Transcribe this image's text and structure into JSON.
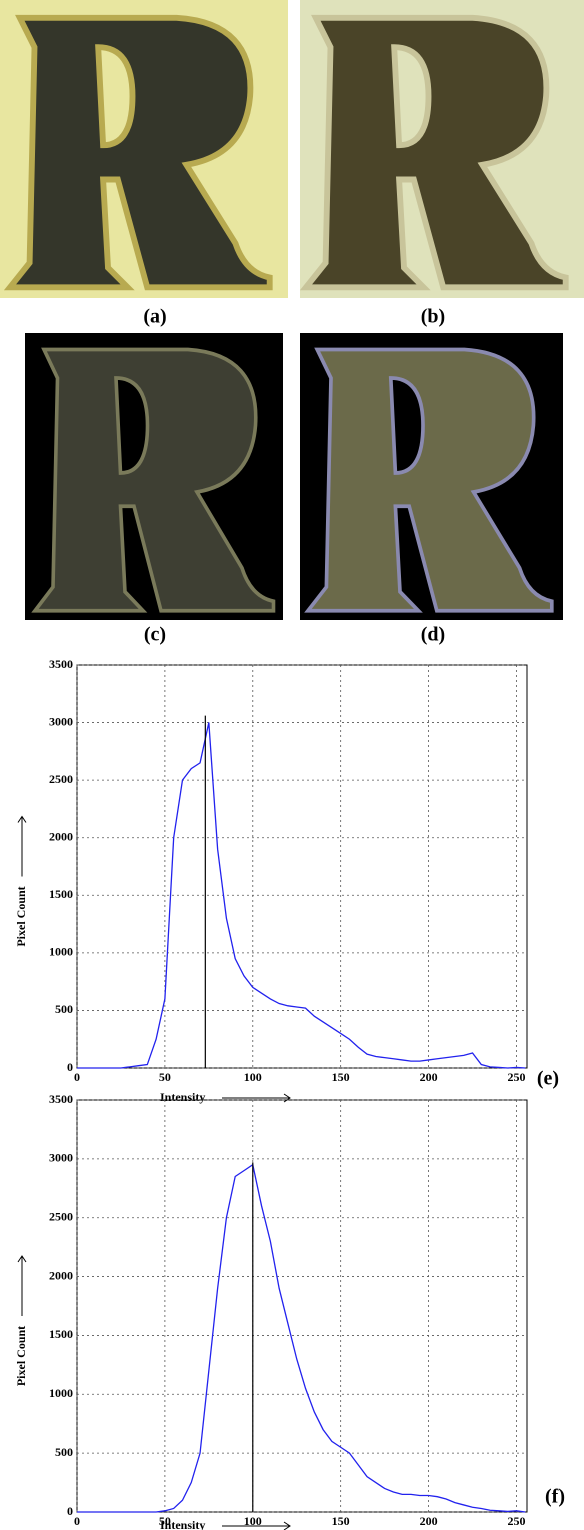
{
  "panels": [
    {
      "label": "(a)"
    },
    {
      "label": "(b)"
    },
    {
      "label": "(c)"
    },
    {
      "label": "(d)"
    }
  ],
  "chart_data": [
    {
      "type": "line",
      "panel_label": "(e)",
      "xlabel": "Intensity",
      "ylabel": "Pixel Count",
      "color": "#2222ee",
      "x": [
        0,
        5,
        10,
        15,
        20,
        25,
        30,
        35,
        40,
        45,
        50,
        55,
        60,
        65,
        70,
        75,
        80,
        85,
        90,
        95,
        100,
        105,
        110,
        115,
        120,
        125,
        130,
        135,
        140,
        145,
        150,
        155,
        160,
        165,
        170,
        175,
        180,
        185,
        190,
        195,
        200,
        205,
        210,
        215,
        220,
        225,
        230,
        235,
        240,
        245,
        250,
        255
      ],
      "values": [
        0,
        0,
        0,
        0,
        0,
        0,
        10,
        20,
        30,
        250,
        600,
        2000,
        2500,
        2600,
        2650,
        3000,
        1900,
        1300,
        950,
        800,
        700,
        650,
        600,
        560,
        540,
        530,
        520,
        450,
        400,
        350,
        300,
        250,
        180,
        120,
        100,
        90,
        80,
        70,
        60,
        60,
        70,
        80,
        90,
        100,
        110,
        130,
        30,
        10,
        5,
        0,
        5,
        0
      ],
      "vline": {
        "x": 73,
        "y": 3060,
        "color": "#000000"
      },
      "xlim": [
        0,
        256
      ],
      "ylim": [
        0,
        3500
      ],
      "xticks": [
        0,
        50,
        100,
        150,
        200,
        250
      ],
      "yticks": [
        0,
        500,
        1000,
        1500,
        2000,
        2500,
        3000,
        3500
      ],
      "grid": true
    },
    {
      "type": "line",
      "panel_label": "(f)",
      "xlabel": "Intensity",
      "ylabel": "Pixel Count",
      "color": "#2222ee",
      "x": [
        0,
        5,
        10,
        15,
        20,
        25,
        30,
        35,
        40,
        45,
        50,
        55,
        60,
        65,
        70,
        75,
        80,
        85,
        90,
        95,
        100,
        105,
        110,
        115,
        120,
        125,
        130,
        135,
        140,
        145,
        150,
        155,
        160,
        165,
        170,
        175,
        180,
        185,
        190,
        195,
        200,
        205,
        210,
        215,
        220,
        225,
        230,
        235,
        240,
        245,
        250,
        255
      ],
      "values": [
        0,
        0,
        0,
        0,
        0,
        0,
        0,
        0,
        0,
        0,
        10,
        30,
        100,
        250,
        500,
        1200,
        1900,
        2500,
        2850,
        2900,
        2950,
        2600,
        2300,
        1900,
        1600,
        1300,
        1050,
        850,
        700,
        600,
        550,
        500,
        400,
        300,
        250,
        200,
        170,
        150,
        150,
        140,
        140,
        130,
        110,
        80,
        60,
        40,
        30,
        15,
        10,
        5,
        10,
        0
      ],
      "vline": {
        "x": 100,
        "y": 2970,
        "color": "#000000"
      },
      "xlim": [
        0,
        256
      ],
      "ylim": [
        0,
        3500
      ],
      "xticks": [
        0,
        50,
        100,
        150,
        200,
        250
      ],
      "yticks": [
        0,
        500,
        1000,
        1500,
        2000,
        2500,
        3000,
        3500
      ],
      "grid": true
    }
  ]
}
